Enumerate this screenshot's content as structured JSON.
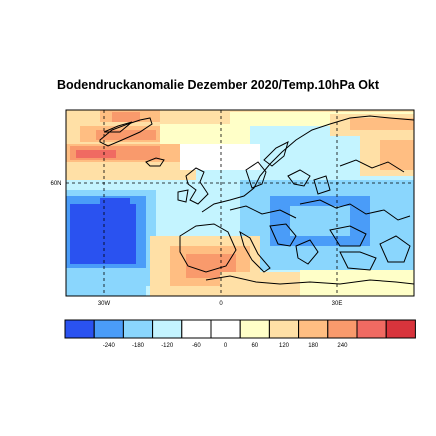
{
  "title": "Bodendruckanomalie Dezember 2020/Temp.10hPa Okt",
  "map": {
    "lat_labels": [
      "60N"
    ],
    "lon_labels": [
      "30W",
      "0",
      "30E"
    ]
  },
  "colorbar": {
    "colors": [
      "#2a52f0",
      "#4a9cf8",
      "#8ad6fd",
      "#c4f4ff",
      "#ffffff",
      "#ffffff",
      "#ffffc8",
      "#ffe0a6",
      "#ffbe82",
      "#f99a6c",
      "#f06a62",
      "#d8343c"
    ],
    "tick_labels": [
      "-240",
      "-180",
      "-120",
      "-60",
      "0",
      "60",
      "120",
      "180",
      "240"
    ]
  }
}
